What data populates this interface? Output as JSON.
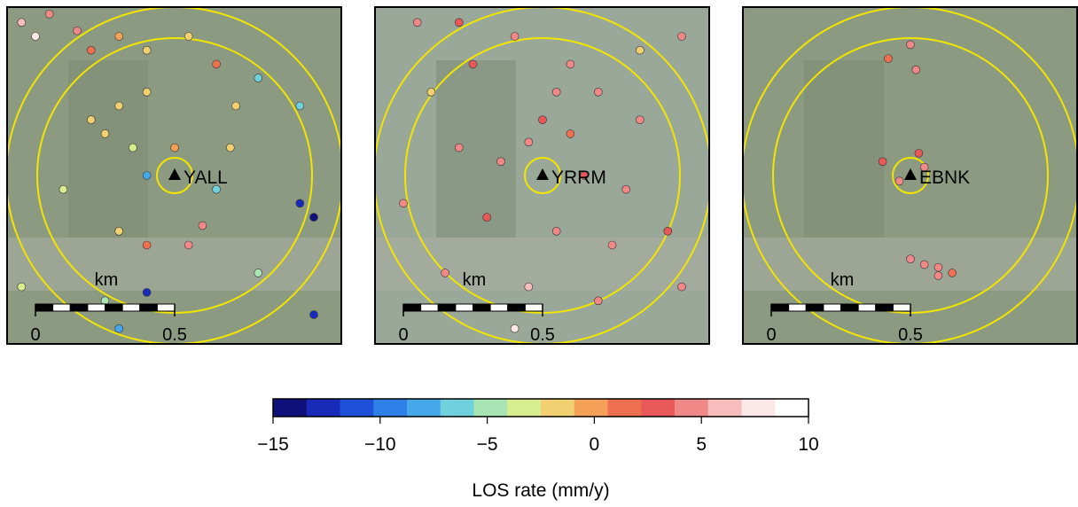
{
  "panels": [
    {
      "station": "YALL",
      "scale_unit": "km",
      "scale_ticks": [
        0,
        0.5
      ],
      "points": [
        [
          -0.55,
          0.55,
          6
        ],
        [
          -0.5,
          0.5,
          7
        ],
        [
          -0.45,
          0.58,
          5
        ],
        [
          -0.35,
          0.52,
          4
        ],
        [
          -0.3,
          0.45,
          2
        ],
        [
          -0.2,
          0.5,
          0
        ],
        [
          -0.1,
          0.45,
          -1
        ],
        [
          0.05,
          0.5,
          -2
        ],
        [
          0.15,
          0.4,
          1
        ],
        [
          0.3,
          0.35,
          -6
        ],
        [
          0.45,
          0.25,
          -7
        ],
        [
          -0.3,
          0.2,
          -1
        ],
        [
          -0.25,
          0.15,
          -2
        ],
        [
          -0.2,
          0.25,
          -1
        ],
        [
          -0.15,
          0.1,
          -3
        ],
        [
          -0.1,
          0.3,
          -2
        ],
        [
          0,
          0.1,
          0
        ],
        [
          0.2,
          0.1,
          -1
        ],
        [
          0.22,
          0.25,
          -2
        ],
        [
          -0.1,
          0,
          -8
        ],
        [
          0.15,
          -0.05,
          -6
        ],
        [
          0.45,
          -0.1,
          -12
        ],
        [
          0.5,
          -0.15,
          -14
        ],
        [
          -0.2,
          -0.2,
          -1
        ],
        [
          -0.1,
          -0.25,
          2
        ],
        [
          0.05,
          -0.25,
          5
        ],
        [
          0.1,
          -0.18,
          4
        ],
        [
          -0.4,
          -0.05,
          -4
        ],
        [
          -0.55,
          -0.4,
          -4
        ],
        [
          -0.25,
          -0.45,
          -5
        ],
        [
          -0.1,
          -0.42,
          -13
        ],
        [
          0.3,
          -0.35,
          -5
        ],
        [
          0.5,
          -0.5,
          -12
        ],
        [
          -0.2,
          -0.55,
          -8
        ]
      ]
    },
    {
      "station": "YRRM",
      "scale_unit": "km",
      "scale_ticks": [
        0,
        0.5
      ],
      "points": [
        [
          -0.3,
          0.55,
          3
        ],
        [
          -0.1,
          0.5,
          4
        ],
        [
          0.1,
          0.4,
          5
        ],
        [
          0.05,
          0.3,
          4
        ],
        [
          0,
          0.2,
          3
        ],
        [
          -0.05,
          0.12,
          5
        ],
        [
          0.1,
          0.15,
          2
        ],
        [
          0.2,
          0.3,
          4
        ],
        [
          0.35,
          0.2,
          4
        ],
        [
          -0.4,
          0.3,
          -2
        ],
        [
          -0.3,
          0.1,
          4
        ],
        [
          -0.15,
          0.05,
          5
        ],
        [
          0.15,
          0,
          3
        ],
        [
          0.3,
          -0.05,
          5
        ],
        [
          -0.5,
          -0.1,
          4
        ],
        [
          -0.2,
          -0.15,
          3
        ],
        [
          0.05,
          -0.2,
          4
        ],
        [
          0.25,
          -0.25,
          5
        ],
        [
          0.45,
          -0.2,
          3
        ],
        [
          -0.35,
          -0.35,
          4
        ],
        [
          -0.05,
          -0.4,
          6
        ],
        [
          0.2,
          -0.45,
          4
        ],
        [
          0.5,
          -0.4,
          5
        ],
        [
          -0.45,
          0.55,
          4
        ],
        [
          0.5,
          0.5,
          4
        ],
        [
          -0.1,
          -0.55,
          7
        ],
        [
          0.35,
          0.45,
          -1
        ],
        [
          -0.25,
          0.4,
          3
        ]
      ]
    },
    {
      "station": "EBNK",
      "scale_unit": "km",
      "scale_ticks": [
        0,
        0.5
      ],
      "points": [
        [
          0.0,
          0.47,
          4
        ],
        [
          -0.08,
          0.42,
          2
        ],
        [
          0.02,
          0.38,
          5
        ],
        [
          0.03,
          0.08,
          3
        ],
        [
          0.05,
          0.03,
          5
        ],
        [
          -0.04,
          -0.02,
          4
        ],
        [
          0.0,
          -0.3,
          4
        ],
        [
          0.05,
          -0.32,
          5
        ],
        [
          0.1,
          -0.33,
          4
        ],
        [
          0.15,
          -0.35,
          2
        ],
        [
          0.1,
          -0.36,
          4
        ],
        [
          -0.1,
          0.05,
          3
        ]
      ]
    }
  ],
  "colorbar": {
    "label": "LOS rate (mm/y)",
    "lim": [
      -15,
      10
    ],
    "ticks": [
      {
        "value": -15,
        "label": "−15"
      },
      {
        "value": -10,
        "label": "−10"
      },
      {
        "value": -5,
        "label": "−5"
      },
      0,
      5,
      10
    ],
    "colors": [
      "#10107a",
      "#1a2ab8",
      "#1f50d8",
      "#2f80e6",
      "#45a8ea",
      "#70d0dc",
      "#a8e4b4",
      "#d8ec90",
      "#f0d070",
      "#f4a058",
      "#ee7050",
      "#e85858",
      "#f08888",
      "#f8bcbc",
      "#fde8e8",
      "#ffffff"
    ]
  }
}
